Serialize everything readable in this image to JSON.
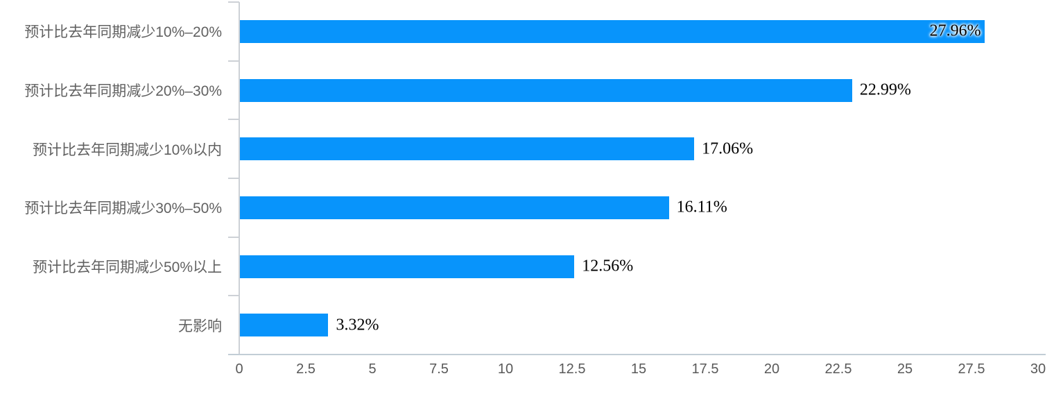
{
  "chart_data": {
    "type": "bar",
    "orientation": "horizontal",
    "title": "",
    "xlabel": "",
    "ylabel": "",
    "categories": [
      "预计比去年同期减少10%–20%",
      "预计比去年同期减少20%–30%",
      "预计比去年同期减少10%以内",
      "预计比去年同期减少30%–50%",
      "预计比去年同期减少50%以上",
      "无影响"
    ],
    "values": [
      27.96,
      22.99,
      17.06,
      16.11,
      12.56,
      3.32
    ],
    "value_labels": [
      "27.96%",
      "22.99%",
      "17.06%",
      "16.11%",
      "12.56%",
      "3.32%"
    ],
    "xlim": [
      0,
      30
    ],
    "x_ticks": [
      0,
      2.5,
      5,
      7.5,
      10,
      12.5,
      15,
      17.5,
      20,
      22.5,
      25,
      27.5,
      30
    ],
    "x_tick_labels": [
      "0",
      "2.5",
      "5",
      "7.5",
      "10",
      "12.5",
      "15",
      "17.5",
      "20",
      "22.5",
      "25",
      "27.5",
      "30"
    ],
    "grid": false,
    "legend": false,
    "colors": {
      "bar": "#0894fb",
      "y_axis": "#cdd1d6",
      "x_axis": "#c2cdd6",
      "category_label": "#616161",
      "tick_label": "#595959",
      "value_label": "#000000"
    }
  }
}
